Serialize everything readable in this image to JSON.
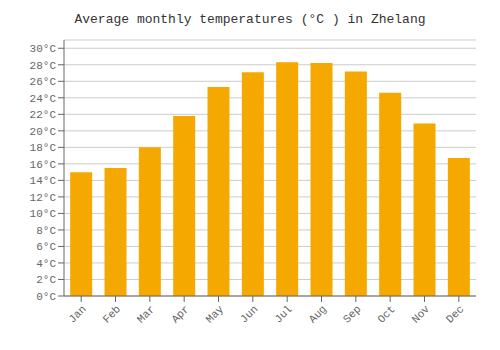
{
  "chart_data": {
    "type": "bar",
    "title": "Average monthly temperatures (°C ) in Zhelang",
    "categories": [
      "Jan",
      "Feb",
      "Mar",
      "Apr",
      "May",
      "Jun",
      "Jul",
      "Aug",
      "Sep",
      "Oct",
      "Nov",
      "Dec"
    ],
    "values": [
      15.0,
      15.5,
      18.0,
      21.8,
      25.3,
      27.1,
      28.3,
      28.2,
      27.2,
      24.6,
      20.9,
      16.7
    ],
    "color": "#F5A800",
    "ylim": [
      0,
      31
    ],
    "yticks": [
      {
        "value": 0,
        "label": "0°C"
      },
      {
        "value": 2,
        "label": "2°C"
      },
      {
        "value": 4,
        "label": "4°C"
      },
      {
        "value": 6,
        "label": "6°C"
      },
      {
        "value": 8,
        "label": "8°C"
      },
      {
        "value": 10,
        "label": "10°C"
      },
      {
        "value": 12,
        "label": "12°C"
      },
      {
        "value": 14,
        "label": "14°C"
      },
      {
        "value": 16,
        "label": "16°C"
      },
      {
        "value": 18,
        "label": "18°C"
      },
      {
        "value": 20,
        "label": "20°C"
      },
      {
        "value": 22,
        "label": "22°C"
      },
      {
        "value": 24,
        "label": "24°C"
      },
      {
        "value": 26,
        "label": "26°C"
      },
      {
        "value": 28,
        "label": "28°C"
      },
      {
        "value": 30,
        "label": "30°C"
      }
    ],
    "grid": true
  }
}
